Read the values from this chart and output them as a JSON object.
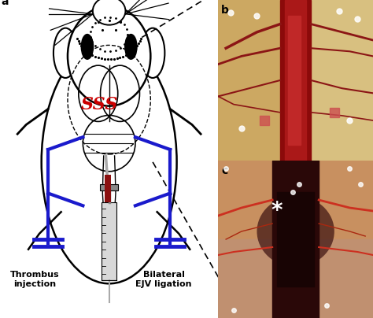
{
  "panel_a_label": "a",
  "panel_b_label": "b",
  "panel_c_label": "c",
  "sss_label": "SSS",
  "thrombus_label": "Thrombus\ninjection",
  "bilateral_label": "Bilateral\nEJV ligation",
  "asterisk": "*",
  "bg_color": "#ffffff",
  "blue_color": "#1a1acc",
  "red_color": "#cc0000",
  "label_fontsize": 10,
  "sss_fontsize": 16,
  "annot_fontsize": 8,
  "panel_b_colors": {
    "bg": "#d4aa70",
    "vessel_dark": "#8b1010",
    "vessel_mid": "#b02020",
    "vessel_light": "#cc4040",
    "branch": "#a03030"
  },
  "panel_c_colors": {
    "bg": "#c8906a",
    "center_dark": "#1a0808",
    "center_mid": "#3a1010",
    "edge": "#cc3030",
    "branch": "#aa4030"
  }
}
